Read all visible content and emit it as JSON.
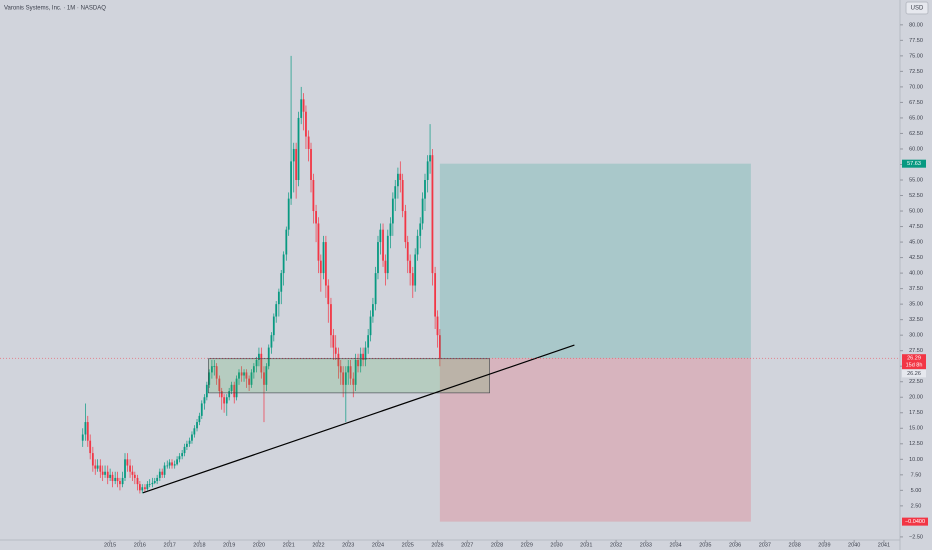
{
  "chart_data": {
    "type": "candlestick",
    "title": "Varonis Systems, Inc. · 1M · NASDAQ",
    "currency": "USD",
    "xlim": [
      2011.3,
      2041.54
    ],
    "ylim": [
      -3,
      84
    ],
    "xticks": [
      2015,
      2016,
      2017,
      2018,
      2019,
      2020,
      2021,
      2022,
      2023,
      2024,
      2025,
      2026,
      2027,
      2028,
      2029,
      2030,
      2031,
      2032,
      2033,
      2034,
      2035,
      2036,
      2037,
      2038,
      2039,
      2040,
      2041
    ],
    "yticks": [
      {
        "value": 80,
        "label": "80.00"
      },
      {
        "value": 77.5,
        "label": "77.50"
      },
      {
        "value": 75,
        "label": "75.00"
      },
      {
        "value": 72.5,
        "label": "72.50"
      },
      {
        "value": 70,
        "label": "70.00"
      },
      {
        "value": 67.5,
        "label": "67.50"
      },
      {
        "value": 65,
        "label": "65.00"
      },
      {
        "value": 62.5,
        "label": "62.50"
      },
      {
        "value": 60,
        "label": "60.00"
      },
      {
        "value": 57.5,
        "label": "57.50"
      },
      {
        "value": 55,
        "label": "55.00"
      },
      {
        "value": 52.5,
        "label": "52.50"
      },
      {
        "value": 50,
        "label": "50.00"
      },
      {
        "value": 47.5,
        "label": "47.50"
      },
      {
        "value": 45,
        "label": "45.00"
      },
      {
        "value": 42.5,
        "label": "42.50"
      },
      {
        "value": 40,
        "label": "40.00"
      },
      {
        "value": 37.5,
        "label": "37.50"
      },
      {
        "value": 35,
        "label": "35.00"
      },
      {
        "value": 32.5,
        "label": "32.50"
      },
      {
        "value": 30,
        "label": "30.00"
      },
      {
        "value": 27.5,
        "label": "27.50"
      },
      {
        "value": 25,
        "label": "25.00"
      },
      {
        "value": 22.5,
        "label": "22.50"
      },
      {
        "value": 20,
        "label": "20.00"
      },
      {
        "value": 17.5,
        "label": "17.50"
      },
      {
        "value": 15,
        "label": "15.00"
      },
      {
        "value": 12.5,
        "label": "12.50"
      },
      {
        "value": 10,
        "label": "10.00"
      },
      {
        "value": 7.5,
        "label": "7.50"
      },
      {
        "value": 5,
        "label": "5.00"
      },
      {
        "value": 2.5,
        "label": "2.50"
      },
      {
        "value": -2.5,
        "label": "−2.50"
      }
    ],
    "up_color": "#089981",
    "down_color": "#f23645",
    "candles": {
      "x": [
        2014.08,
        2014.17,
        2014.25,
        2014.33,
        2014.42,
        2014.5,
        2014.58,
        2014.67,
        2014.75,
        2014.83,
        2014.92,
        2015.0,
        2015.08,
        2015.17,
        2015.25,
        2015.33,
        2015.42,
        2015.5,
        2015.58,
        2015.67,
        2015.75,
        2015.83,
        2015.92,
        2016.0,
        2016.08,
        2016.17,
        2016.25,
        2016.33,
        2016.42,
        2016.5,
        2016.58,
        2016.67,
        2016.75,
        2016.83,
        2016.92,
        2017.0,
        2017.08,
        2017.17,
        2017.25,
        2017.33,
        2017.42,
        2017.5,
        2017.58,
        2017.67,
        2017.75,
        2017.83,
        2017.92,
        2018.0,
        2018.08,
        2018.17,
        2018.25,
        2018.33,
        2018.42,
        2018.5,
        2018.58,
        2018.67,
        2018.75,
        2018.83,
        2018.92,
        2019.0,
        2019.08,
        2019.17,
        2019.25,
        2019.33,
        2019.42,
        2019.5,
        2019.58,
        2019.67,
        2019.75,
        2019.83,
        2019.92,
        2020.0,
        2020.08,
        2020.17,
        2020.25,
        2020.33,
        2020.42,
        2020.5,
        2020.58,
        2020.67,
        2020.75,
        2020.83,
        2020.92,
        2021.0,
        2021.08,
        2021.17,
        2021.25,
        2021.33,
        2021.42,
        2021.5,
        2021.58,
        2021.67,
        2021.75,
        2021.83,
        2021.92,
        2022.0,
        2022.08,
        2022.17,
        2022.25,
        2022.33,
        2022.42,
        2022.5,
        2022.58,
        2022.67,
        2022.75,
        2022.83,
        2022.92,
        2023.0,
        2023.08,
        2023.17,
        2023.25,
        2023.33,
        2023.42,
        2023.5,
        2023.58,
        2023.67,
        2023.75,
        2023.83,
        2023.92,
        2024.0,
        2024.08,
        2024.17,
        2024.25,
        2024.33,
        2024.42,
        2024.5,
        2024.58,
        2024.67,
        2024.75,
        2024.83,
        2024.92,
        2025.0,
        2025.08,
        2025.17,
        2025.25,
        2025.33,
        2025.42,
        2025.5,
        2025.58,
        2025.67,
        2025.75,
        2025.83,
        2025.92,
        2026.0,
        2026.08
      ],
      "values": [
        [
          13,
          15,
          12,
          14
        ],
        [
          14,
          19,
          13,
          16
        ],
        [
          16,
          17,
          12,
          13
        ],
        [
          13,
          14,
          10,
          11
        ],
        [
          11,
          12,
          8,
          9
        ],
        [
          9,
          10,
          7.5,
          8.5
        ],
        [
          8.5,
          10,
          8,
          9
        ],
        [
          9,
          10,
          7,
          8
        ],
        [
          8,
          9,
          6.5,
          7.5
        ],
        [
          7.5,
          9,
          7,
          8
        ],
        [
          8,
          9,
          6,
          7
        ],
        [
          7,
          8.5,
          6.5,
          7.5
        ],
        [
          7.5,
          8,
          5.5,
          6.5
        ],
        [
          6.5,
          8,
          6,
          7
        ],
        [
          7,
          8,
          5.5,
          6.5
        ],
        [
          6.5,
          7,
          5,
          6
        ],
        [
          6,
          8,
          5.5,
          7
        ],
        [
          7,
          11,
          6.5,
          10
        ],
        [
          10,
          11,
          8,
          9
        ],
        [
          9,
          10,
          7,
          8
        ],
        [
          8,
          9,
          6.5,
          7.5
        ],
        [
          7.5,
          8,
          6,
          7
        ],
        [
          7,
          7.5,
          5,
          6
        ],
        [
          6,
          6.5,
          4.5,
          5
        ],
        [
          5,
          6,
          4.5,
          5.5
        ],
        [
          5.5,
          6,
          4.8,
          5.2
        ],
        [
          5.2,
          6.5,
          5,
          6
        ],
        [
          6,
          6.8,
          5.5,
          6
        ],
        [
          6,
          7,
          5.5,
          6.2
        ],
        [
          6.2,
          7,
          6,
          6.5
        ],
        [
          6.5,
          7.5,
          6,
          7
        ],
        [
          7,
          8.5,
          6.5,
          8
        ],
        [
          8,
          8.5,
          7,
          7.5
        ],
        [
          7.5,
          9.5,
          7,
          9
        ],
        [
          9,
          9.8,
          8.5,
          9
        ],
        [
          9,
          10,
          8.5,
          9.5
        ],
        [
          9.5,
          10,
          8.5,
          9
        ],
        [
          9,
          9.8,
          8.5,
          9.2
        ],
        [
          9.2,
          10.5,
          9,
          10
        ],
        [
          10,
          11,
          9.5,
          10.5
        ],
        [
          10.5,
          11.5,
          10,
          11
        ],
        [
          11,
          12.5,
          10.5,
          12
        ],
        [
          12,
          13,
          11.5,
          12.5
        ],
        [
          12.5,
          13.5,
          12,
          13
        ],
        [
          13,
          14.5,
          12.5,
          14
        ],
        [
          14,
          15.5,
          13.5,
          15
        ],
        [
          15,
          16.5,
          14.5,
          16
        ],
        [
          16,
          17.5,
          15.5,
          17
        ],
        [
          17,
          19.5,
          16.5,
          19
        ],
        [
          19,
          20.5,
          18,
          20
        ],
        [
          20,
          22.5,
          19.5,
          22
        ],
        [
          22,
          24.5,
          21.5,
          24
        ],
        [
          24,
          26,
          23,
          25
        ],
        [
          25,
          26,
          23.5,
          25
        ],
        [
          25,
          25.5,
          22,
          23
        ],
        [
          23,
          23.5,
          20,
          21
        ],
        [
          21,
          21.5,
          18,
          20
        ],
        [
          20,
          20.5,
          17.5,
          19
        ],
        [
          19,
          20.5,
          17,
          20
        ],
        [
          20,
          21.5,
          19.5,
          21
        ],
        [
          21,
          22.5,
          20.5,
          22
        ],
        [
          22,
          22.5,
          19,
          20
        ],
        [
          20,
          23.5,
          19.5,
          23
        ],
        [
          23,
          24.5,
          22,
          24
        ],
        [
          24,
          25,
          22.5,
          23.5
        ],
        [
          23.5,
          24.5,
          22.5,
          24
        ],
        [
          24,
          24.5,
          21.5,
          23
        ],
        [
          23,
          23.5,
          21,
          22
        ],
        [
          22,
          24.5,
          21.5,
          24
        ],
        [
          24,
          25.5,
          23,
          25
        ],
        [
          25,
          26.5,
          24,
          26
        ],
        [
          26,
          28,
          25,
          27
        ],
        [
          27,
          28,
          23,
          24
        ],
        [
          24,
          25,
          16,
          22
        ],
        [
          22,
          25.5,
          21,
          25
        ],
        [
          25,
          28.5,
          24.5,
          28
        ],
        [
          28,
          30.5,
          27,
          30
        ],
        [
          30,
          33.5,
          29,
          33
        ],
        [
          33,
          35.5,
          32,
          35
        ],
        [
          35,
          37.5,
          33,
          37
        ],
        [
          37,
          40.5,
          35,
          40
        ],
        [
          40,
          43.5,
          38,
          43
        ],
        [
          43,
          47.5,
          42,
          47
        ],
        [
          47,
          53,
          46,
          52
        ],
        [
          52,
          75,
          51,
          58
        ],
        [
          58,
          61,
          53,
          60
        ],
        [
          60,
          61,
          52,
          55
        ],
        [
          55,
          66,
          54,
          65
        ],
        [
          65,
          70,
          64,
          68
        ],
        [
          68,
          69,
          63,
          66
        ],
        [
          66,
          67,
          60,
          62
        ],
        [
          62,
          63,
          58,
          60
        ],
        [
          60,
          61,
          53,
          55
        ],
        [
          55,
          56,
          48,
          50
        ],
        [
          50,
          51,
          45,
          48
        ],
        [
          48,
          49,
          40,
          42
        ],
        [
          42,
          43,
          37,
          40
        ],
        [
          40,
          46,
          39,
          45
        ],
        [
          45,
          46,
          36,
          38
        ],
        [
          38,
          39,
          32,
          35
        ],
        [
          35,
          36,
          28,
          30
        ],
        [
          30,
          31,
          26,
          28
        ],
        [
          28,
          30,
          26,
          27
        ],
        [
          27,
          28,
          23,
          25
        ],
        [
          25,
          26,
          22,
          24
        ],
        [
          24,
          25,
          20,
          22
        ],
        [
          22,
          25,
          16,
          24
        ],
        [
          24,
          26,
          22,
          25
        ],
        [
          25,
          26,
          22,
          23
        ],
        [
          23,
          24,
          20,
          22
        ],
        [
          22,
          27,
          21,
          26
        ],
        [
          26,
          27,
          24,
          25
        ],
        [
          25,
          28,
          24,
          27
        ],
        [
          27,
          28,
          25,
          26
        ],
        [
          26,
          29,
          25,
          28
        ],
        [
          28,
          31,
          27,
          30
        ],
        [
          30,
          34,
          29,
          33
        ],
        [
          33,
          36,
          32,
          35
        ],
        [
          35,
          41,
          34,
          40
        ],
        [
          40,
          46,
          39,
          45
        ],
        [
          45,
          48,
          43,
          47
        ],
        [
          47,
          48,
          41,
          42
        ],
        [
          42,
          43,
          38,
          40
        ],
        [
          40,
          47,
          39,
          46
        ],
        [
          46,
          49,
          44,
          48
        ],
        [
          48,
          53,
          46,
          52
        ],
        [
          52,
          55,
          50,
          54
        ],
        [
          54,
          57,
          52,
          56
        ],
        [
          56,
          58,
          53,
          55
        ],
        [
          55,
          56,
          49,
          50
        ],
        [
          50,
          51,
          44,
          45
        ],
        [
          45,
          46,
          40,
          42
        ],
        [
          42,
          43,
          38,
          40
        ],
        [
          40,
          41,
          36,
          38
        ],
        [
          38,
          44,
          37,
          43
        ],
        [
          43,
          47,
          42,
          46
        ],
        [
          46,
          49,
          44,
          48
        ],
        [
          48,
          53,
          47,
          52
        ],
        [
          52,
          56,
          50,
          55
        ],
        [
          55,
          59,
          53,
          58
        ],
        [
          58,
          64,
          56,
          59
        ],
        [
          59,
          60,
          38,
          40
        ],
        [
          40,
          41,
          31,
          33
        ],
        [
          33,
          34,
          28,
          30
        ],
        [
          30,
          31,
          25,
          26.29
        ]
      ]
    },
    "last_price": 26.29,
    "countdown": "15d 8h",
    "second_price": 26.26,
    "position": {
      "x": [
        2026.08,
        2036.53
      ],
      "target": 57.63,
      "entry": 26.29,
      "stop": {
        "value": -0.04,
        "label": "−0.0400"
      }
    },
    "range_box": {
      "x": [
        2018.3,
        2027.75
      ],
      "y": [
        20.7,
        26.2
      ]
    },
    "trend_line": {
      "x": [
        2016.1,
        2030.6
      ],
      "y": [
        4.6,
        28.4
      ]
    }
  }
}
